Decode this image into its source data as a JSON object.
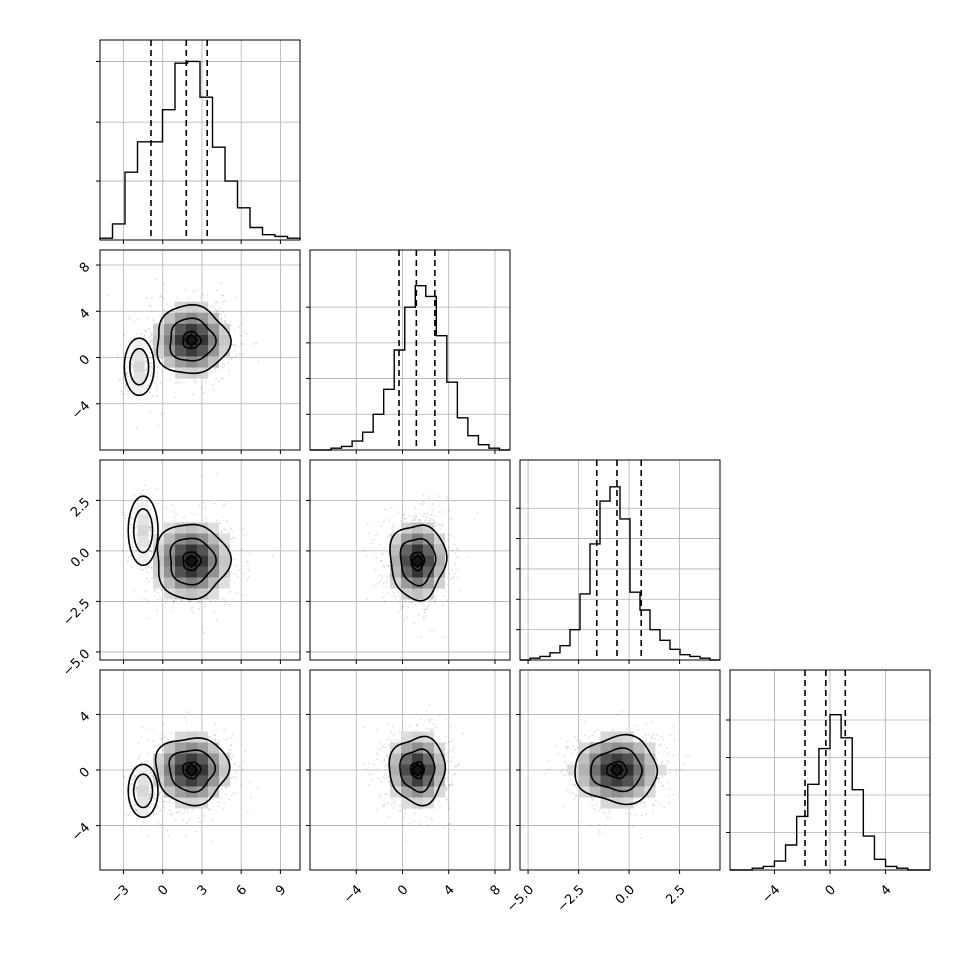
{
  "chart_data": {
    "type": "corner",
    "grid": true,
    "parameters": [
      {
        "index": 0,
        "label": "",
        "median": 1.8,
        "q16": -0.9,
        "q84": 3.4,
        "range": [
          -4.8,
          10.5
        ],
        "ticks": [
          -3,
          0,
          3,
          6,
          9
        ],
        "tick_labels": [
          "−3",
          "0",
          "3",
          "6",
          "9"
        ],
        "hist": [
          0.01,
          0.09,
          0.38,
          0.55,
          0.55,
          0.73,
          0.99,
          1.0,
          0.8,
          0.52,
          0.33,
          0.18,
          0.07,
          0.03,
          0.02,
          0.01
        ]
      },
      {
        "index": 1,
        "label": "",
        "median": 1.2,
        "q16": -0.3,
        "q84": 2.8,
        "range": [
          -8.0,
          9.3
        ],
        "ticks": [
          -4,
          0,
          4,
          8
        ],
        "tick_labels": [
          "−4",
          "0",
          "4",
          "8"
        ],
        "hist": [
          0.0,
          0.0,
          0.01,
          0.02,
          0.05,
          0.1,
          0.2,
          0.34,
          0.56,
          0.8,
          0.92,
          0.86,
          0.64,
          0.38,
          0.18,
          0.08,
          0.03,
          0.01,
          0.0
        ]
      },
      {
        "index": 2,
        "label": "",
        "median": -0.6,
        "q16": -1.6,
        "q84": 0.6,
        "range": [
          -5.4,
          4.5
        ],
        "ticks": [
          -5.0,
          -2.5,
          0.0,
          2.5
        ],
        "tick_labels": [
          "−5.0",
          "−2.5",
          "0.0",
          "2.5"
        ],
        "hist": [
          0.0,
          0.01,
          0.02,
          0.04,
          0.08,
          0.17,
          0.37,
          0.65,
          0.89,
          0.97,
          0.79,
          0.38,
          0.28,
          0.17,
          0.11,
          0.06,
          0.03,
          0.02,
          0.01,
          0.0
        ]
      },
      {
        "index": 3,
        "label": "",
        "median": -0.3,
        "q16": -1.8,
        "q84": 1.1,
        "range": [
          -7.2,
          7.2
        ],
        "ticks": [
          -4,
          0,
          4
        ],
        "tick_labels": [
          "−4",
          "0",
          "4"
        ],
        "hist": [
          0.0,
          0.0,
          0.01,
          0.02,
          0.05,
          0.14,
          0.3,
          0.48,
          0.68,
          0.87,
          0.74,
          0.45,
          0.19,
          0.06,
          0.02,
          0.01,
          0.0,
          0.0
        ]
      }
    ],
    "histogram_y_ticks": [
      {
        "param": 0,
        "values": [
          0.33,
          0.66,
          1.0
        ]
      },
      {
        "param": 1,
        "values": [
          0.2,
          0.4,
          0.6,
          0.8
        ]
      },
      {
        "param": 2,
        "values": [
          0.17,
          0.34,
          0.51,
          0.68,
          0.85
        ]
      },
      {
        "param": 3,
        "values": [
          0.21,
          0.42,
          0.63,
          0.84
        ]
      }
    ],
    "scatter_panels": [
      {
        "x": 0,
        "y": 1,
        "main_center": [
          2.2,
          1.5
        ],
        "main_sigma": [
          1.5,
          1.6
        ],
        "tail_center": [
          -1.8,
          -0.8
        ],
        "tail_sigma": [
          0.6,
          1.3
        ],
        "y_ticks": [
          -4,
          0,
          4,
          8
        ],
        "y_tick_labels": [
          "−4",
          "0",
          "4",
          "8"
        ]
      },
      {
        "x": 0,
        "y": 2,
        "main_center": [
          2.2,
          -0.5
        ],
        "main_sigma": [
          1.5,
          1.0
        ],
        "tail_center": [
          -1.5,
          1.0
        ],
        "tail_sigma": [
          0.6,
          0.9
        ],
        "y_ticks": [
          -5.0,
          -2.5,
          0.0,
          2.5
        ],
        "y_tick_labels": [
          "−5.0",
          "−2.5",
          "0.0",
          "2.5"
        ]
      },
      {
        "x": 1,
        "y": 2,
        "main_center": [
          1.3,
          -0.5
        ],
        "main_sigma": [
          1.3,
          1.0
        ],
        "tail_center": null,
        "tail_sigma": null
      },
      {
        "x": 0,
        "y": 3,
        "main_center": [
          2.2,
          0.0
        ],
        "main_sigma": [
          1.5,
          1.3
        ],
        "tail_center": [
          -1.5,
          -1.5
        ],
        "tail_sigma": [
          0.6,
          1.0
        ],
        "y_ticks": [
          -4,
          0,
          4
        ],
        "y_tick_labels": [
          "−4",
          "0",
          "4"
        ]
      },
      {
        "x": 1,
        "y": 3,
        "main_center": [
          1.3,
          0.0
        ],
        "main_sigma": [
          1.3,
          1.3
        ],
        "tail_center": null,
        "tail_sigma": null
      },
      {
        "x": 2,
        "y": 3,
        "main_center": [
          -0.6,
          0.0
        ],
        "main_sigma": [
          1.1,
          1.3
        ],
        "tail_center": null,
        "tail_sigma": null
      }
    ]
  }
}
